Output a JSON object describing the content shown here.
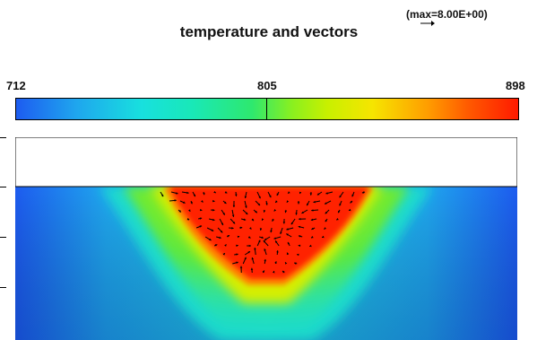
{
  "title": "temperature and vectors",
  "vector_max_label": "(max=8.00E+00)",
  "colorbar": {
    "min_label": "712",
    "mid_label": "805",
    "max_label": "898"
  },
  "colors": {
    "cold": "#1d5cf0",
    "mid": "#2ee86e",
    "hot": "#ff1a00",
    "vectors": "#000000",
    "background": "#ffffff"
  }
}
